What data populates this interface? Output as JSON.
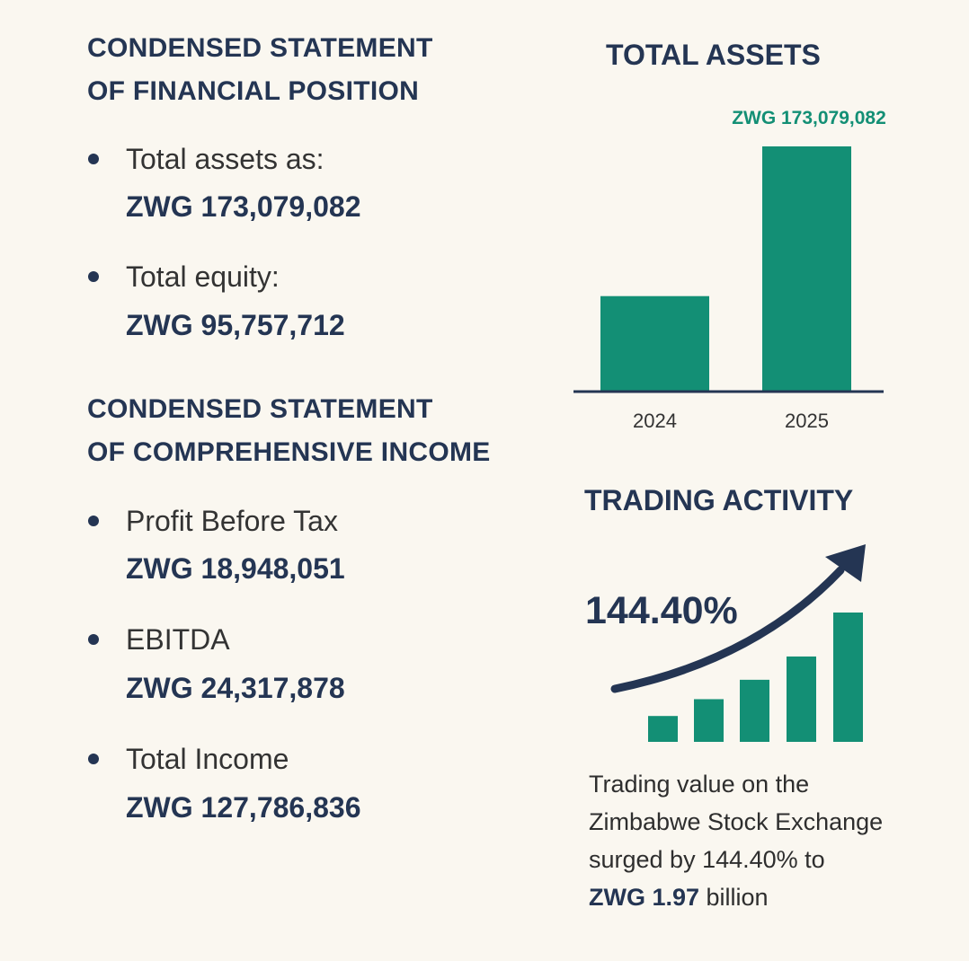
{
  "colors": {
    "background": "#faf7f0",
    "navy": "#243553",
    "green": "#138f75"
  },
  "financial_position": {
    "heading_line1": "CONDENSED STATEMENT",
    "heading_line2": "OF FINANCIAL POSITION",
    "items": [
      {
        "label": "Total assets as:",
        "value": "ZWG 173,079,082"
      },
      {
        "label": "Total equity:",
        "value": "ZWG 95,757,712"
      }
    ]
  },
  "comprehensive_income": {
    "heading_line1": "CONDENSED STATEMENT",
    "heading_line2": "OF COMPREHENSIVE INCOME",
    "items": [
      {
        "label": "Profit Before Tax",
        "value": "ZWG 18,948,051"
      },
      {
        "label": "EBITDA",
        "value": "ZWG 24,317,878"
      },
      {
        "label": "Total Income",
        "value": "ZWG 127,786,836"
      }
    ]
  },
  "chart_data": [
    {
      "type": "bar",
      "title": "TOTAL ASSETS",
      "categories": [
        "2024",
        "2025"
      ],
      "values": [
        67000000,
        173079082
      ],
      "data_labels": [
        "",
        "ZWG 173,079,082"
      ],
      "ylim": [
        0,
        173079082
      ],
      "grid": false,
      "color": "#138f75"
    },
    {
      "type": "bar",
      "title": "TRADING ACTIVITY",
      "annotation": "144.40%",
      "relative_levels": [
        0.2,
        0.33,
        0.48,
        0.66,
        1.0
      ],
      "trend_arrow": "up",
      "color": "#138f75"
    }
  ],
  "trading": {
    "description_lines": [
      "Trading value on the",
      "Zimbabwe Stock Exchange",
      "surged by 144.40% to"
    ],
    "final_bold": "ZWG 1.97",
    "final_rest": " billion"
  }
}
